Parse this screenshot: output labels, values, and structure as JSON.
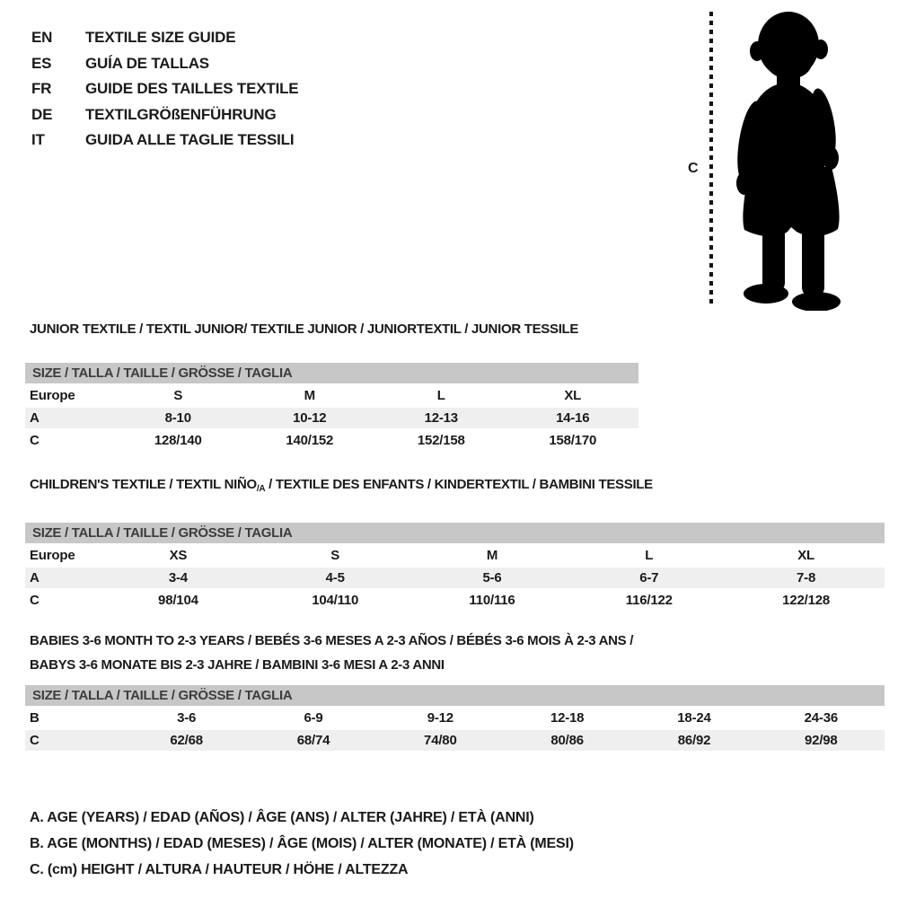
{
  "languages": [
    {
      "code": "EN",
      "title": "TEXTILE SIZE GUIDE"
    },
    {
      "code": "ES",
      "title": "GUÍA DE TALLAS"
    },
    {
      "code": "FR",
      "title": "GUIDE DES TAILLES TEXTILE"
    },
    {
      "code": "DE",
      "title": "TEXTILGRÖßENFÜHRUNG"
    },
    {
      "code": "IT",
      "title": "GUIDA ALLE TAGLIE TESSILI"
    }
  ],
  "figure": {
    "label": "C",
    "icon": "toddler-silhouette"
  },
  "colors": {
    "header_band_bg": "#c7c7c7",
    "shaded_row_bg": "#efefef",
    "text": "#1a1a1a",
    "silhouette": "#000000"
  },
  "sections": [
    {
      "title_lines": [
        [
          {
            "t": "JUNIOR TEXTILE / TEXTIL JUNIOR/ TEXTILE JUNIOR / JUNIORTEXTIL / JUNIOR TESSILE"
          }
        ]
      ],
      "header": "SIZE / TALLA / TAILLE / GRÖSSE / TAGLIA",
      "rows": [
        {
          "label": "Europe",
          "values": [
            "S",
            "M",
            "L",
            "XL"
          ],
          "shaded": false
        },
        {
          "label": "A",
          "values": [
            "8-10",
            "10-12",
            "12-13",
            "14-16"
          ],
          "shaded": true
        },
        {
          "label": "C",
          "values": [
            "128/140",
            "140/152",
            "152/158",
            "158/170"
          ],
          "shaded": false
        }
      ]
    },
    {
      "title_lines": [
        [
          {
            "t": "CHILDREN'S TEXTILE / TEXTIL NIÑO"
          },
          {
            "t": "/A",
            "sub": true
          },
          {
            "t": " / TEXTILE DES ENFANTS / KINDERTEXTIL / BAMBINI TESSILE"
          }
        ]
      ],
      "header": "SIZE / TALLA / TAILLE / GRÖSSE / TAGLIA",
      "rows": [
        {
          "label": "Europe",
          "values": [
            "XS",
            "S",
            "M",
            "L",
            "XL"
          ],
          "shaded": false
        },
        {
          "label": "A",
          "values": [
            "3-4",
            "4-5",
            "5-6",
            "6-7",
            "7-8"
          ],
          "shaded": true
        },
        {
          "label": "C",
          "values": [
            "98/104",
            "104/110",
            "110/116",
            "116/122",
            "122/128"
          ],
          "shaded": false
        }
      ]
    },
    {
      "title_lines": [
        [
          {
            "t": "BABIES 3-6 MONTH TO 2-3 YEARS / BEBÉS 3-6 MESES A 2-3 AÑOS / BÉBÉS 3-6 MOIS À 2-3 ANS /"
          }
        ],
        [
          {
            "t": "BABYS 3-6 MONATE BIS 2-3 JAHRE / BAMBINI 3-6 MESI A 2-3 ANNI"
          }
        ]
      ],
      "header": "SIZE / TALLA / TAILLE / GRÖSSE / TAGLIA",
      "rows": [
        {
          "label": "B",
          "values": [
            "3-6",
            "6-9",
            "9-12",
            "12-18",
            "18-24",
            "24-36"
          ],
          "shaded": false
        },
        {
          "label": "C",
          "values": [
            "62/68",
            "68/74",
            "74/80",
            "80/86",
            "86/92",
            "92/98"
          ],
          "shaded": true
        }
      ]
    }
  ],
  "footnotes": [
    "A. AGE (YEARS) / EDAD (AÑOS) / ÂGE (ANS) / ALTER (JAHRE) / ETÀ (ANNI)",
    "B. AGE (MONTHS) / EDAD (MESES) / ÂGE (MOIS) / ALTER (MONATE) / ETÀ (MESI)",
    "C. (cm) HEIGHT / ALTURA / HAUTEUR / HÖHE / ALTEZZA"
  ]
}
